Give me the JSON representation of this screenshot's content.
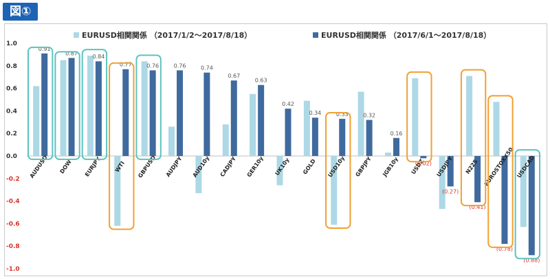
{
  "figure_label": "図①",
  "chart_data": {
    "type": "bar",
    "ylim": [
      -1.0,
      1.0
    ],
    "yticks": [
      "1.0",
      "0.8",
      "0.6",
      "0.4",
      "0.2",
      "0.0",
      "-0.2",
      "-0.4",
      "-0.6",
      "-0.8",
      "-1.0"
    ],
    "ytick_values": [
      1.0,
      0.8,
      0.6,
      0.4,
      0.2,
      0.0,
      -0.2,
      -0.4,
      -0.6,
      -0.8,
      -1.0
    ],
    "grid": false,
    "legend_position": "top",
    "categories": [
      "AUDUSD",
      "DOW",
      "EURJPY",
      "WTI",
      "GBPUSD",
      "AUDJPY",
      "AUD10y",
      "CADJPY",
      "GER10y",
      "UK10y",
      "GOLD",
      "USD10y",
      "GBPJPY",
      "JGB10y",
      "USDZ",
      "USDJPY",
      "N225",
      "EUROSTOXX50",
      "USDCAD"
    ],
    "series": [
      {
        "name": "EURUSD相関関係 （2017/1/2～2017/8/18）",
        "color": "#add8e6",
        "values": [
          0.62,
          0.85,
          0.89,
          -0.62,
          0.84,
          0.26,
          -0.33,
          0.28,
          0.55,
          -0.26,
          0.49,
          -0.61,
          0.57,
          0.03,
          0.69,
          -0.47,
          0.71,
          0.48,
          -0.63
        ]
      },
      {
        "name": "EURUSD相関関係 （2017/6/1～2017/8/18）",
        "color": "#3f6a9e",
        "values": [
          0.91,
          0.87,
          0.84,
          0.77,
          0.76,
          0.76,
          0.74,
          0.67,
          0.63,
          0.42,
          0.34,
          0.33,
          0.32,
          0.16,
          -0.02,
          -0.27,
          -0.41,
          -0.78,
          -0.88
        ],
        "labels": [
          "0.91",
          "0.87",
          "0.84",
          "0.77",
          "0.76",
          "0.76",
          "0.74",
          "0.67",
          "0.63",
          "0.42",
          "0.34",
          "0.33",
          "0.32",
          "0.16",
          "(0.02)",
          "(0.27)",
          "(0.41)",
          "(0.78)",
          "(0.88)"
        ]
      }
    ],
    "annotations": {
      "teal_groups": [
        0,
        1,
        2,
        4,
        18
      ],
      "orange_groups": [
        3,
        11,
        14,
        16,
        17
      ],
      "teal_color": "#5cc2c0",
      "orange_color": "#f0a030"
    }
  }
}
